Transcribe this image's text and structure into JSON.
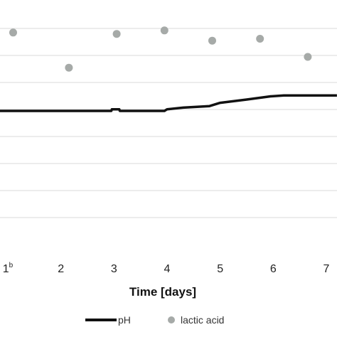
{
  "chart_data": {
    "type": "line",
    "xlabel": "Time [days]",
    "x_tick_labels": [
      {
        "x": 1,
        "label": "1",
        "superscript": "b"
      },
      {
        "x": 2,
        "label": "2"
      },
      {
        "x": 3,
        "label": "3"
      },
      {
        "x": 4,
        "label": "4"
      },
      {
        "x": 5,
        "label": "5"
      },
      {
        "x": 6,
        "label": "6"
      },
      {
        "x": 7,
        "label": "7"
      }
    ],
    "xlim": [
      0.85,
      7.2
    ],
    "y_gridline_count": 8,
    "grid": "horizontal",
    "legend_position": "bottom",
    "series": [
      {
        "name": "pH",
        "kind": "step-line",
        "color": "#111111",
        "points": [
          {
            "x": 0.85,
            "y": 0
          },
          {
            "x": 2.95,
            "y": 0
          },
          {
            "x": 2.96,
            "y": 0.06
          },
          {
            "x": 3.1,
            "y": 0.06
          },
          {
            "x": 3.11,
            "y": 0
          },
          {
            "x": 3.95,
            "y": 0
          },
          {
            "x": 4.0,
            "y": 0.06
          },
          {
            "x": 4.3,
            "y": 0.12
          },
          {
            "x": 4.8,
            "y": 0.18
          },
          {
            "x": 5.0,
            "y": 0.3
          },
          {
            "x": 5.5,
            "y": 0.42
          },
          {
            "x": 5.95,
            "y": 0.54
          },
          {
            "x": 6.2,
            "y": 0.57
          },
          {
            "x": 7.2,
            "y": 0.57
          }
        ]
      },
      {
        "name": "lactic acid",
        "kind": "scatter",
        "color": "#a6aaa8",
        "points": [
          {
            "x": 1.1,
            "y": 2.9
          },
          {
            "x": 2.15,
            "y": 1.6
          },
          {
            "x": 3.05,
            "y": 2.85
          },
          {
            "x": 3.95,
            "y": 2.98
          },
          {
            "x": 4.85,
            "y": 2.6
          },
          {
            "x": 5.75,
            "y": 2.67
          },
          {
            "x": 6.65,
            "y": 2.0
          }
        ]
      }
    ]
  }
}
